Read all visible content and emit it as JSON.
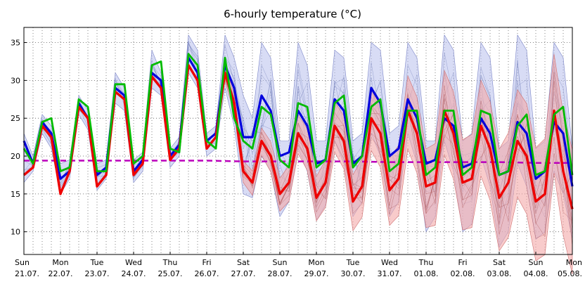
{
  "chart_data": {
    "type": "line",
    "title": "6-hourly temperature (°C)",
    "xlabel": "",
    "ylabel": "",
    "ylim": [
      7,
      37
    ],
    "y_ticks": [
      10,
      15,
      20,
      25,
      30,
      35
    ],
    "grid": true,
    "legend": "none",
    "colors": {
      "blue_series": "#0000dd",
      "red_series": "#ee0000",
      "green_series": "#00bb00",
      "dashed_line": "#bb00bb",
      "blue_band": "#b8c0ec",
      "blue_members": "#6070b0",
      "red_band": "#f4a8a8",
      "red_members": "#a04040"
    },
    "x_labels": [
      {
        "day": "Sun",
        "date": "21.07."
      },
      {
        "day": "Mon",
        "date": "22.07."
      },
      {
        "day": "Tue",
        "date": "23.07."
      },
      {
        "day": "Wed",
        "date": "24.07."
      },
      {
        "day": "Thu",
        "date": "25.07."
      },
      {
        "day": "Fri",
        "date": "26.07."
      },
      {
        "day": "Sat",
        "date": "27.07."
      },
      {
        "day": "Sun",
        "date": "28.07."
      },
      {
        "day": "Mon",
        "date": "29.07."
      },
      {
        "day": "Tue",
        "date": "30.07."
      },
      {
        "day": "Wed",
        "date": "31.07."
      },
      {
        "day": "Thu",
        "date": "01.08."
      },
      {
        "day": "Fri",
        "date": "02.08."
      },
      {
        "day": "Sat",
        "date": "03.08."
      },
      {
        "day": "Sun",
        "date": "04.08."
      },
      {
        "day": "Mon",
        "date": "05.08."
      }
    ],
    "series": [
      {
        "key": "blue",
        "values": [
          22,
          19,
          24.5,
          23,
          17,
          18,
          27,
          25,
          17.5,
          18.5,
          29,
          28,
          18,
          19.5,
          31,
          30,
          20,
          21.5,
          33,
          31,
          22,
          23,
          32,
          29,
          22.5,
          22.5,
          28,
          26,
          20,
          20.5,
          26,
          24,
          19,
          19.5,
          27.5,
          26,
          19,
          20,
          29,
          27,
          20,
          21,
          27.5,
          25,
          19,
          19.5,
          25,
          24,
          18.5,
          19,
          25,
          23,
          17.5,
          18,
          24.5,
          23,
          17,
          18,
          24.5,
          23,
          16
        ]
      },
      {
        "key": "red",
        "values": [
          17.5,
          18.5,
          24,
          22.5,
          15,
          18,
          26.5,
          25,
          16,
          17.5,
          28.5,
          27.5,
          17.5,
          19,
          30.5,
          29,
          19.5,
          21,
          32,
          30,
          21,
          22.5,
          31,
          27,
          18,
          16.5,
          22,
          20,
          15,
          16.5,
          23,
          21,
          14.5,
          16.5,
          24,
          22,
          14,
          16,
          25,
          23,
          15.5,
          17,
          26,
          23,
          16,
          16.5,
          26,
          23,
          16.5,
          17,
          24,
          21,
          14.5,
          16.5,
          22,
          20,
          14,
          15,
          26,
          18,
          13
        ]
      },
      {
        "key": "green",
        "values": [
          21,
          19,
          24.5,
          25,
          18,
          18.5,
          27.5,
          26.5,
          18,
          18,
          29.5,
          29.5,
          19,
          20,
          32,
          32.5,
          21,
          20.5,
          33.5,
          32,
          22,
          21,
          33,
          25,
          22,
          21,
          26.5,
          25.5,
          19.5,
          18.5,
          27,
          26.5,
          18.5,
          19.5,
          27,
          28,
          18.5,
          20,
          26.5,
          27.5,
          18,
          19,
          26,
          26,
          17.5,
          18.5,
          26,
          26,
          17.5,
          18.5,
          26,
          25.5,
          17.5,
          18,
          24,
          25.5,
          17.5,
          18,
          25.5,
          26.5,
          17.5
        ]
      },
      {
        "key": "dashed",
        "values": [
          19.4,
          19.4,
          19.4,
          19.4,
          19.4,
          19.4,
          19.3,
          19.3,
          19.3,
          19.3,
          19.2,
          19.2,
          19.2,
          19.2,
          19.1,
          19.1
        ]
      }
    ],
    "envelopes": [
      {
        "key": "blue",
        "start_index": 0,
        "upper": [
          23,
          20,
          25.5,
          24,
          19,
          19.5,
          28,
          26,
          19,
          19.5,
          31,
          29,
          19.5,
          20.5,
          34,
          31,
          21,
          22.5,
          36,
          34,
          23,
          24,
          36,
          33,
          28,
          25,
          35,
          33,
          22,
          22,
          35,
          32,
          22,
          22,
          34,
          33,
          22,
          23,
          35,
          34,
          23,
          24,
          35,
          33,
          22,
          22,
          36,
          34,
          22,
          23,
          35,
          33,
          21,
          22,
          36,
          34,
          21,
          22,
          35,
          33,
          21
        ],
        "lower": [
          16.5,
          18,
          23,
          21,
          15,
          17,
          25.5,
          23.5,
          15.5,
          17,
          27,
          26,
          16.5,
          18,
          29,
          28,
          18.5,
          20,
          31,
          29,
          20,
          21,
          29,
          24,
          15,
          14.5,
          20,
          18,
          12,
          14,
          21,
          18,
          11.5,
          13.5,
          22,
          19,
          12,
          14,
          23,
          20,
          12,
          14,
          23,
          19,
          10,
          12,
          22,
          18,
          10,
          11,
          20,
          16,
          8,
          10,
          19,
          16,
          9,
          10,
          18,
          15,
          9
        ]
      }
    ]
  }
}
